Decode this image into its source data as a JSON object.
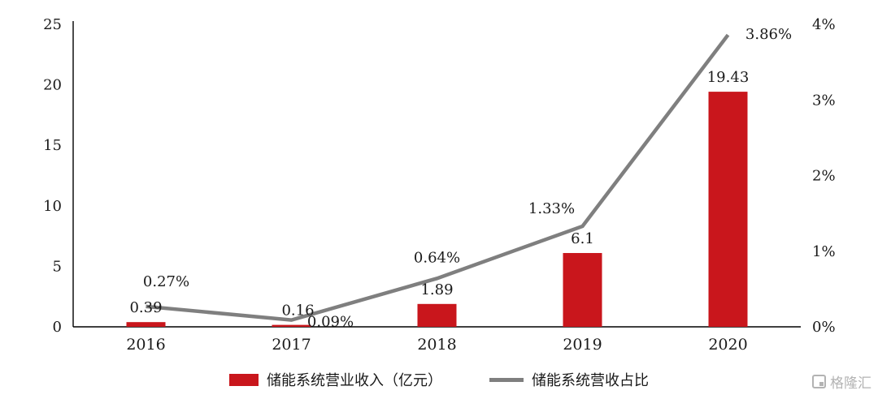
{
  "chart_data": {
    "type": "bar",
    "subtype": "bar+line combo",
    "categories": [
      "2016",
      "2017",
      "2018",
      "2019",
      "2020"
    ],
    "series": [
      {
        "name": "储能系统营业收入（亿元）",
        "type": "bar",
        "axis": "left",
        "color": "#c9161c",
        "values": [
          0.39,
          0.16,
          1.89,
          6.1,
          19.43
        ],
        "labels": [
          "0.39",
          "0.16",
          "1.89",
          "6.1",
          "19.43"
        ]
      },
      {
        "name": "储能系统营收占比",
        "type": "line",
        "axis": "right",
        "color": "#7f7f7f",
        "values": [
          0.27,
          0.09,
          0.64,
          1.33,
          3.86
        ],
        "labels": [
          "0.27%",
          "0.09%",
          "0.64%",
          "1.33%",
          "3.86%"
        ]
      }
    ],
    "left_axis": {
      "min": 0,
      "max": 25,
      "ticks": [
        "0",
        "5",
        "10",
        "15",
        "20",
        "25"
      ]
    },
    "right_axis": {
      "min": 0,
      "max": 4,
      "ticks": [
        "0%",
        "1%",
        "2%",
        "3%",
        "4%"
      ]
    },
    "grid": false,
    "legend_position": "bottom"
  },
  "watermark": {
    "text": "格隆汇"
  }
}
